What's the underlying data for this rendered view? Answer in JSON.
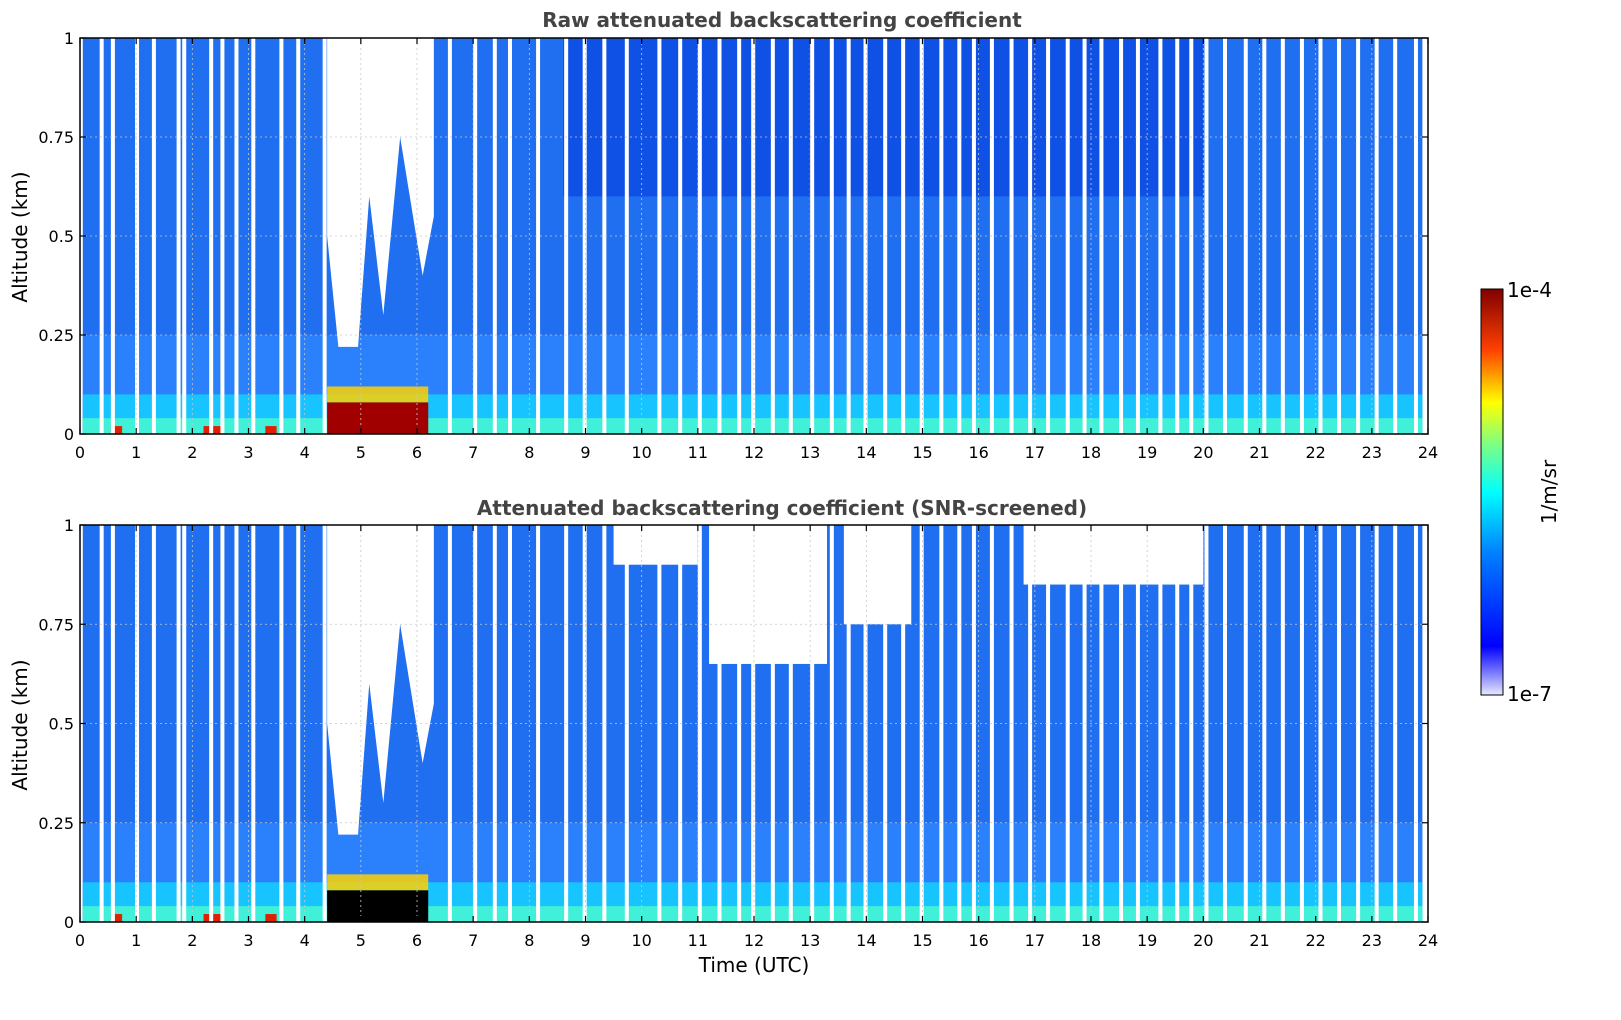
{
  "chart_data": [
    {
      "type": "heatmap",
      "title": "Raw attenuated backscattering coefficient",
      "xlabel": "",
      "ylabel": "Altitude (km)",
      "xlim": [
        0,
        24
      ],
      "ylim": [
        0,
        1
      ],
      "xticks": [
        "0",
        "1",
        "2",
        "3",
        "4",
        "5",
        "6",
        "7",
        "8",
        "9",
        "10",
        "11",
        "12",
        "13",
        "14",
        "15",
        "16",
        "17",
        "18",
        "19",
        "20",
        "21",
        "22",
        "23",
        "24"
      ],
      "yticks": [
        "0",
        "0.25",
        "0.5",
        "0.75",
        "1"
      ],
      "grid": true,
      "colorscale": "jet",
      "features": {
        "surface_layer_top_km": 0.1,
        "high_backscatter_region": {
          "x": [
            4.4,
            6.2
          ],
          "y": [
            0,
            0.08
          ],
          "level": "1e-4"
        },
        "cloud_clear_column": {
          "x": [
            4.4,
            6.3
          ],
          "y": [
            0.2,
            1
          ]
        },
        "noisy_upper_region": {
          "x": [
            9,
            20
          ],
          "y": [
            0.6,
            1
          ]
        }
      }
    },
    {
      "type": "heatmap",
      "title": "Attenuated backscattering coefficient (SNR-screened)",
      "xlabel": "Time (UTC)",
      "ylabel": "Altitude (km)",
      "xlim": [
        0,
        24
      ],
      "ylim": [
        0,
        1
      ],
      "xticks": [
        "0",
        "1",
        "2",
        "3",
        "4",
        "5",
        "6",
        "7",
        "8",
        "9",
        "10",
        "11",
        "12",
        "13",
        "14",
        "15",
        "16",
        "17",
        "18",
        "19",
        "20",
        "21",
        "22",
        "23",
        "24"
      ],
      "yticks": [
        "0",
        "0.25",
        "0.5",
        "0.75",
        "1"
      ],
      "grid": true,
      "colorscale": "jet",
      "features": {
        "surface_layer_top_km": 0.1,
        "saturated_region": {
          "x": [
            4.4,
            6.2
          ],
          "y": [
            0,
            0.08
          ],
          "color": "black"
        },
        "screened_out_upper_patches": [
          {
            "x": [
              9.5,
              11
            ],
            "y": [
              0.9,
              1
            ]
          },
          {
            "x": [
              11.2,
              13.3
            ],
            "y": [
              0.65,
              1
            ]
          },
          {
            "x": [
              13.6,
              14.8
            ],
            "y": [
              0.75,
              1
            ]
          },
          {
            "x": [
              16.8,
              20
            ],
            "y": [
              0.85,
              1
            ]
          }
        ]
      }
    }
  ],
  "colorbar": {
    "min_label": "1e-7",
    "max_label": "1e-4",
    "label": "1/m/sr"
  }
}
